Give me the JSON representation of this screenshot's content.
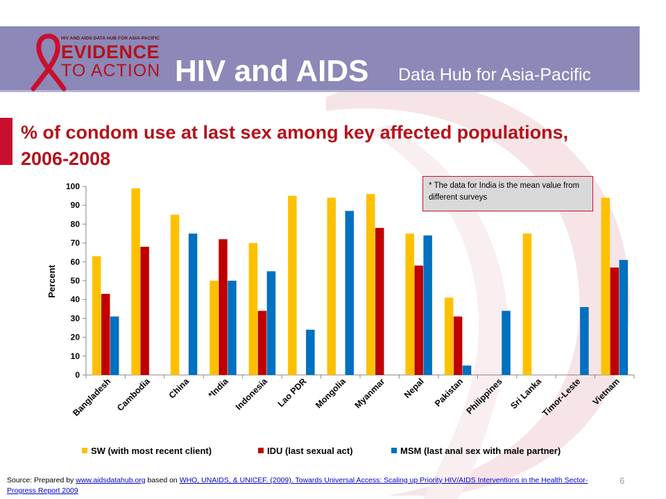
{
  "header": {
    "logo_top_text": "HIV AND AIDS DATA HUB FOR ASIA-PACIFIC",
    "logo_line1": "EVIDENCE",
    "logo_line2": "TO ACTION",
    "title": "HIV and AIDS",
    "subtitle": "Data Hub for Asia-Pacific"
  },
  "slide_title": "% of condom use at last sex among key affected populations, 2006-2008",
  "note": "* The data for India is the mean value from different surveys",
  "footer": {
    "source_prefix": "Source: Prepared by ",
    "source_link1": "www.aidsdatahub.org",
    "source_mid": " based on ",
    "source_link2": "WHO, UNAIDS, & UNICEF. (2009). Towards Universal Access: Scaling up Priority HIV/AIDS Interventions in the Health Sector- Progress Report 2009",
    "page_number": "6"
  },
  "colors": {
    "header_band": "#8c88b8",
    "title_red": "#b5121b",
    "sw": "#ffc000",
    "idu": "#c00000",
    "msm": "#0070c0"
  },
  "chart_data": {
    "type": "bar",
    "ylabel": "Percent",
    "xlabel": "",
    "ylim": [
      0,
      100
    ],
    "yticks": [
      0,
      10,
      20,
      30,
      40,
      50,
      60,
      70,
      80,
      90,
      100
    ],
    "grid": false,
    "legend_position": "bottom",
    "categories": [
      "Bangladesh",
      "Cambodia",
      "China",
      "*India",
      "Indonesia",
      "Lao PDR",
      "Mongolia",
      "Myanmar",
      "Nepal",
      "Pakistan",
      "Philippines",
      "Sri Lanka",
      "Timor-Leste",
      "Vietnam"
    ],
    "series": [
      {
        "name": "SW (with most recent client)",
        "color": "#ffc000",
        "values": [
          63,
          99,
          85,
          50,
          70,
          95,
          94,
          96,
          75,
          41,
          null,
          75,
          null,
          94
        ]
      },
      {
        "name": "IDU (last sexual act)",
        "color": "#c00000",
        "values": [
          43,
          68,
          null,
          72,
          34,
          null,
          null,
          78,
          58,
          31,
          null,
          null,
          null,
          57
        ]
      },
      {
        "name": "MSM (last anal sex with male partner)",
        "color": "#0070c0",
        "values": [
          31,
          null,
          75,
          50,
          55,
          24,
          87,
          null,
          74,
          5,
          34,
          null,
          36,
          61
        ]
      }
    ]
  }
}
